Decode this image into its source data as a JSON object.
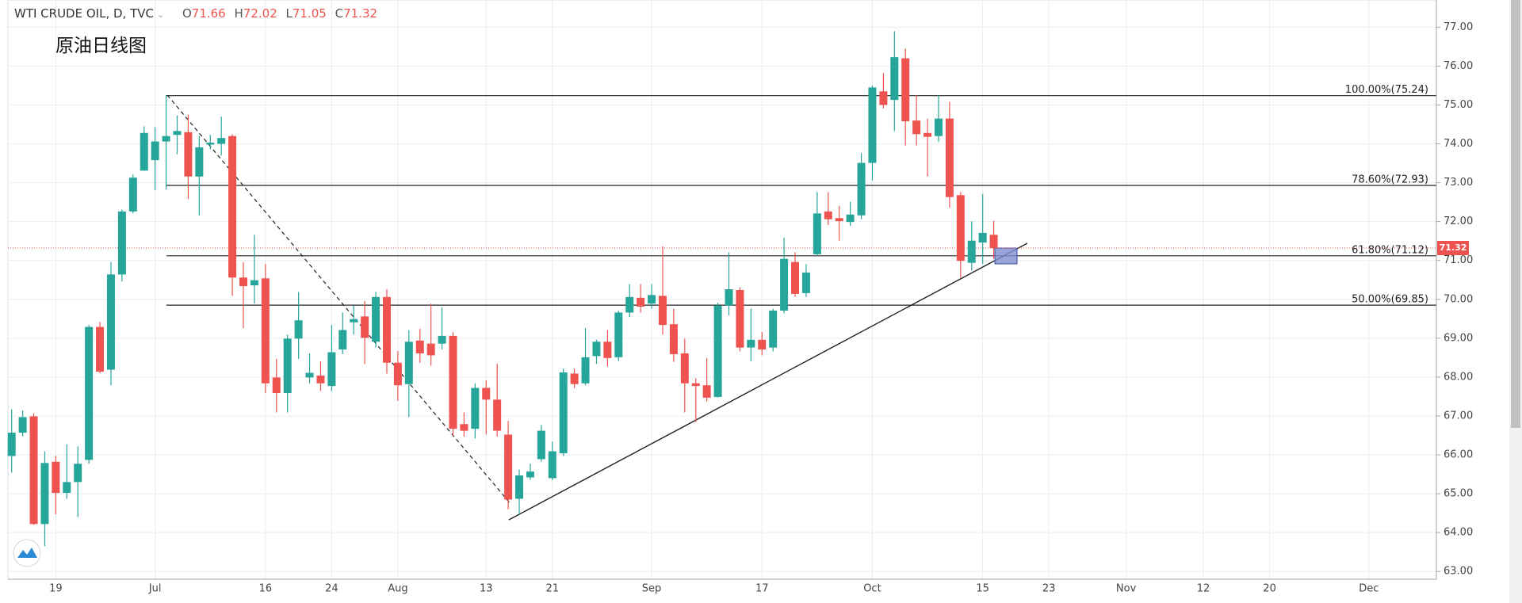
{
  "chart_data": {
    "type": "candlestick",
    "title": "WTI CRUDE OIL, D, TVC",
    "annotation": "原油日线图",
    "ohlc_legend": [
      {
        "label": "O",
        "value": 71.66
      },
      {
        "label": "H",
        "value": 72.02
      },
      {
        "label": "L",
        "value": 71.05
      },
      {
        "label": "C",
        "value": 71.32
      }
    ],
    "up_color": "#26a69a",
    "down_color": "#ef5350",
    "grid": true,
    "ylim": [
      62.8,
      77.7
    ],
    "yticks": [
      {
        "value": 63,
        "label": "63.00"
      },
      {
        "value": 64,
        "label": "64.00"
      },
      {
        "value": 65,
        "label": "65.00"
      },
      {
        "value": 66,
        "label": "66.00"
      },
      {
        "value": 67,
        "label": "67.00"
      },
      {
        "value": 68,
        "label": "68.00"
      },
      {
        "value": 69,
        "label": "69.00"
      },
      {
        "value": 70,
        "label": "70.00"
      },
      {
        "value": 71,
        "label": "71.00"
      },
      {
        "value": 72,
        "label": "72.00"
      },
      {
        "value": 73,
        "label": "73.00"
      },
      {
        "value": 74,
        "label": "74.00"
      },
      {
        "value": 75,
        "label": "75.00"
      },
      {
        "value": 76,
        "label": "76.00"
      },
      {
        "value": 77,
        "label": "77.00"
      }
    ],
    "categories": [
      null,
      null,
      null,
      null,
      "19",
      null,
      null,
      null,
      null,
      null,
      null,
      null,
      null,
      "Jul",
      null,
      null,
      null,
      null,
      null,
      null,
      null,
      null,
      null,
      "16",
      null,
      null,
      null,
      null,
      null,
      "24",
      null,
      null,
      null,
      null,
      null,
      "Aug",
      null,
      null,
      null,
      null,
      null,
      null,
      null,
      "13",
      null,
      null,
      null,
      null,
      null,
      "21",
      null,
      null,
      null,
      null,
      null,
      null,
      null,
      null,
      "Sep",
      null,
      null,
      null,
      null,
      null,
      null,
      null,
      null,
      null,
      "17",
      null,
      null,
      null,
      null,
      null,
      null,
      null,
      null,
      null,
      "Oct",
      null,
      null,
      null,
      null,
      null,
      null,
      null,
      null,
      null,
      "15",
      null,
      null,
      null,
      null,
      null,
      "23",
      null,
      null,
      null,
      null,
      null,
      null,
      "Nov",
      null,
      null,
      null,
      null,
      null,
      null,
      "12",
      null,
      null,
      null,
      null,
      null,
      "20",
      null,
      null,
      null,
      null,
      null,
      null,
      null,
      null,
      "Dec"
    ],
    "open": [
      65.97,
      66.57,
      66.99,
      64.22,
      65.82,
      65.02,
      65.3,
      65.87,
      69.29,
      68.19,
      70.64,
      72.26,
      73.31,
      73.58,
      74.06,
      74.23,
      74.3,
      73.16,
      73.98,
      74.0,
      74.2,
      70.56,
      70.36,
      70.54,
      67.99,
      67.59,
      68.99,
      67.99,
      68.04,
      67.77,
      68.71,
      69.41,
      69.56,
      68.91,
      70.06,
      68.37,
      67.82,
      68.94,
      68.86,
      68.86,
      69.06,
      66.79,
      66.67,
      67.72,
      67.42,
      66.52,
      64.87,
      65.42,
      65.89,
      65.4,
      66.04,
      68.09,
      67.84,
      68.54,
      68.91,
      68.51,
      69.66,
      70.04,
      69.89,
      70.09,
      69.36,
      68.61,
      67.84,
      67.79,
      67.49,
      69.84,
      70.24,
      68.76,
      68.96,
      68.76,
      69.71,
      70.96,
      70.16,
      71.16,
      72.26,
      72.09,
      71.99,
      72.16,
      73.51,
      75.35,
      75.13,
      76.2,
      74.6,
      74.28,
      74.2,
      74.65,
      72.68,
      70.94,
      71.46,
      71.66,
      null,
      null,
      null,
      null,
      null,
      null,
      null,
      null,
      null,
      null,
      null,
      null,
      null,
      null,
      null,
      null,
      null,
      null,
      null,
      null,
      null,
      null,
      null,
      null,
      null,
      null,
      null,
      null,
      null,
      null,
      null,
      null,
      null,
      null
    ],
    "high": [
      67.17,
      67.14,
      67.07,
      66.09,
      65.97,
      66.27,
      66.22,
      69.34,
      69.42,
      70.96,
      72.31,
      73.21,
      74.45,
      74.43,
      75.25,
      74.73,
      74.75,
      74.2,
      74.23,
      74.7,
      74.25,
      70.96,
      71.66,
      70.91,
      68.47,
      69.09,
      70.19,
      68.61,
      68.41,
      69.34,
      69.66,
      69.84,
      69.96,
      70.19,
      70.26,
      68.67,
      69.21,
      69.24,
      69.89,
      69.79,
      69.16,
      67.09,
      67.84,
      67.92,
      68.34,
      66.87,
      65.62,
      65.77,
      66.77,
      66.34,
      68.22,
      68.22,
      69.26,
      68.96,
      69.21,
      69.71,
      70.39,
      70.39,
      70.39,
      71.36,
      69.76,
      68.99,
      67.97,
      68.49,
      69.91,
      71.21,
      70.31,
      69.76,
      69.16,
      69.76,
      71.59,
      71.21,
      70.91,
      72.76,
      72.76,
      72.41,
      72.51,
      73.76,
      75.5,
      75.82,
      76.9,
      76.45,
      75.25,
      74.65,
      75.25,
      75.08,
      72.76,
      72.01,
      72.71,
      72.02,
      null,
      null,
      null,
      null,
      null,
      null,
      null,
      null,
      null,
      null,
      null,
      null,
      null,
      null,
      null,
      null,
      null,
      null,
      null,
      null,
      null,
      null,
      null,
      null,
      null,
      null,
      null,
      null,
      null,
      null,
      null,
      null,
      null,
      null
    ],
    "low": [
      65.54,
      66.47,
      64.2,
      63.65,
      64.47,
      64.87,
      64.4,
      65.77,
      68.1,
      67.79,
      70.46,
      72.21,
      73.31,
      72.81,
      72.83,
      73.73,
      72.58,
      72.16,
      73.86,
      73.7,
      70.09,
      69.26,
      69.89,
      67.59,
      67.09,
      67.09,
      68.47,
      67.84,
      67.64,
      67.64,
      68.59,
      69.09,
      68.34,
      68.76,
      68.09,
      67.39,
      66.97,
      68.37,
      68.29,
      68.71,
      66.47,
      66.47,
      66.42,
      66.52,
      66.47,
      64.6,
      64.47,
      65.35,
      65.82,
      65.35,
      65.97,
      67.72,
      67.79,
      68.34,
      68.27,
      68.41,
      69.54,
      69.66,
      69.76,
      69.09,
      68.39,
      67.09,
      66.84,
      67.37,
      67.47,
      69.59,
      68.66,
      68.41,
      68.56,
      68.66,
      69.64,
      70.06,
      70.06,
      71.11,
      71.91,
      71.51,
      71.89,
      72.06,
      73.06,
      74.91,
      74.33,
      73.96,
      73.96,
      73.16,
      74.05,
      72.36,
      70.56,
      70.74,
      70.91,
      71.05,
      null,
      null,
      null,
      null,
      null,
      null,
      null,
      null,
      null,
      null,
      null,
      null,
      null,
      null,
      null,
      null,
      null,
      null,
      null,
      null,
      null,
      null,
      null,
      null,
      null,
      null,
      null,
      null,
      null,
      null,
      null,
      null,
      null,
      null
    ],
    "close": [
      66.57,
      66.97,
      64.22,
      65.79,
      65.02,
      65.3,
      65.77,
      69.29,
      68.14,
      70.64,
      72.26,
      73.13,
      74.28,
      74.06,
      74.2,
      74.33,
      73.16,
      73.91,
      74.03,
      74.15,
      70.56,
      70.34,
      70.49,
      67.84,
      67.59,
      68.99,
      69.46,
      68.11,
      67.84,
      68.64,
      69.21,
      69.49,
      69.01,
      70.06,
      68.37,
      67.79,
      68.91,
      68.61,
      68.56,
      69.06,
      66.67,
      66.62,
      67.72,
      67.42,
      66.62,
      64.85,
      65.47,
      65.57,
      66.62,
      66.09,
      68.12,
      67.82,
      68.51,
      68.91,
      68.49,
      69.66,
      70.06,
      69.81,
      70.11,
      69.34,
      68.59,
      67.84,
      67.77,
      67.47,
      69.84,
      70.26,
      68.76,
      68.96,
      68.71,
      69.71,
      71.04,
      70.14,
      70.69,
      72.21,
      72.06,
      72.01,
      72.18,
      73.51,
      75.45,
      75.0,
      76.23,
      74.58,
      74.25,
      74.18,
      74.65,
      72.63,
      70.99,
      71.51,
      71.71,
      71.32,
      null,
      null,
      null,
      null,
      null,
      null,
      null,
      null,
      null,
      null,
      null,
      null,
      null,
      null,
      null,
      null,
      null,
      null,
      null,
      null,
      null,
      null,
      null,
      null,
      null,
      null,
      null,
      null,
      null,
      null,
      null,
      null,
      null,
      null
    ],
    "fib_levels": [
      {
        "label": "100.00%(75.24)",
        "value": 75.24
      },
      {
        "label": "78.60%(72.93)",
        "value": 72.93
      },
      {
        "label": "61.80%(71.12)",
        "value": 71.12
      },
      {
        "label": "50.00%(69.85)",
        "value": 69.85
      }
    ],
    "last_price": 71.32
  }
}
